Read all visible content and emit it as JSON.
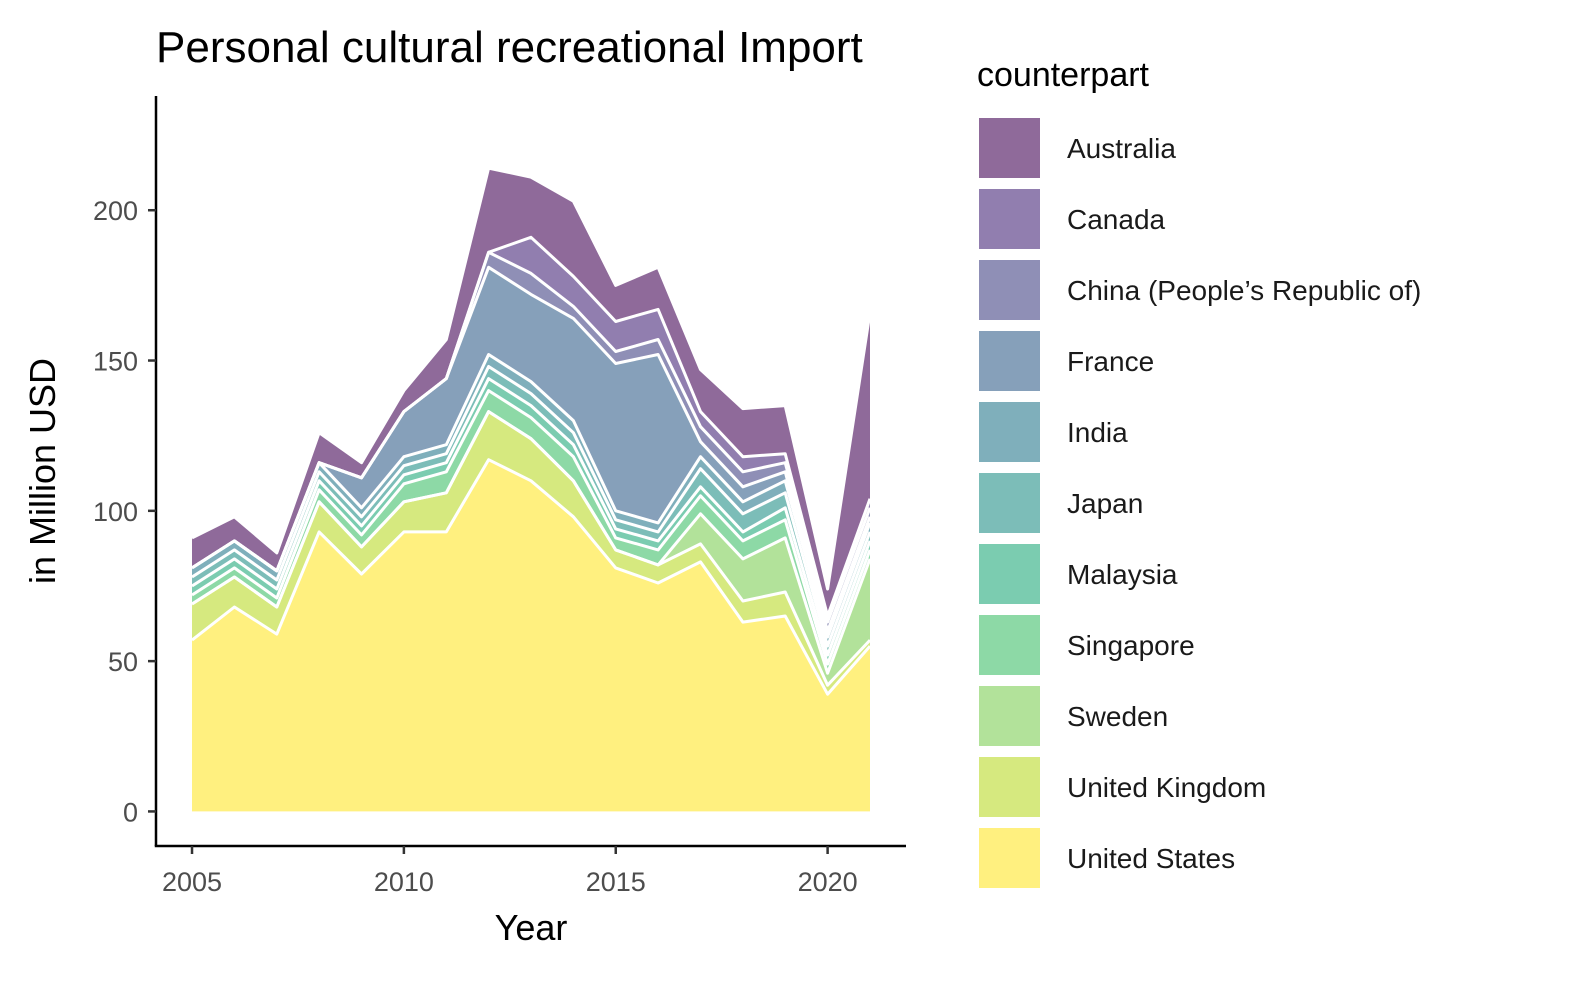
{
  "chart_data": {
    "type": "area",
    "title": "Personal cultural recreational Import",
    "xlabel": "Year",
    "ylabel": "in Million USD",
    "xlim": [
      2004.15,
      2021.85
    ],
    "ylim": [
      -11.5,
      238
    ],
    "x_ticks": [
      2005,
      2010,
      2015,
      2020
    ],
    "y_ticks": [
      0,
      50,
      100,
      150,
      200
    ],
    "legend_title": "counterpart",
    "legend_position": "right",
    "grid": false,
    "years": [
      2005,
      2006,
      2007,
      2008,
      2009,
      2010,
      2011,
      2012,
      2013,
      2014,
      2015,
      2016,
      2017,
      2018,
      2019,
      2020,
      2021
    ],
    "series": [
      {
        "name": "Australia",
        "color": "#8F6A9A",
        "values": [
          10,
          8,
          6,
          10,
          5,
          7,
          13,
          28,
          20,
          25,
          12,
          14,
          14,
          16,
          16,
          9,
          62
        ]
      },
      {
        "name": "Canada",
        "color": "#917EAF",
        "values": [
          0,
          0,
          0,
          0,
          0,
          0,
          0,
          0,
          12,
          10,
          10,
          10,
          5,
          5,
          3,
          2,
          3
        ]
      },
      {
        "name": "China (People’s Republic of)",
        "color": "#8F8FB6",
        "values": [
          0,
          0,
          0,
          0,
          0,
          0,
          0,
          5,
          7,
          4,
          4,
          5,
          5,
          5,
          3,
          3,
          3
        ]
      },
      {
        "name": "France",
        "color": "#86A0BA",
        "values": [
          0,
          0,
          0,
          0,
          10,
          15,
          22,
          29,
          29,
          34,
          49,
          56,
          5,
          5,
          3,
          2,
          2
        ]
      },
      {
        "name": "India",
        "color": "#7FAFBB",
        "values": [
          3,
          3,
          3,
          3,
          3,
          3,
          3,
          4,
          4,
          4,
          3,
          3,
          4,
          4,
          4,
          3,
          3
        ]
      },
      {
        "name": "Japan",
        "color": "#7CBDB8",
        "values": [
          3,
          3,
          3,
          3,
          3,
          3,
          3,
          4,
          4,
          4,
          3,
          3,
          6,
          6,
          5,
          3,
          3
        ]
      },
      {
        "name": "Malaysia",
        "color": "#7BCCB0",
        "values": [
          3,
          3,
          3,
          3,
          3,
          3,
          3,
          4,
          4,
          4,
          3,
          3,
          3,
          3,
          4,
          3,
          3
        ]
      },
      {
        "name": "Singapore",
        "color": "#8DD9A6",
        "values": [
          3,
          3,
          3,
          4,
          4,
          6,
          7,
          7,
          7,
          8,
          4,
          5,
          6,
          6,
          6,
          3,
          3
        ]
      },
      {
        "name": "Sweden",
        "color": "#B2E29A",
        "values": [
          0,
          0,
          0,
          0,
          0,
          0,
          0,
          0,
          0,
          0,
          0,
          0,
          10,
          14,
          18,
          4,
          27
        ]
      },
      {
        "name": "United Kingdom",
        "color": "#D6E97F",
        "values": [
          12,
          10,
          9,
          10,
          9,
          10,
          13,
          16,
          14,
          12,
          6,
          6,
          6,
          7,
          8,
          3,
          2
        ]
      },
      {
        "name": "United States",
        "color": "#FFF07F",
        "values": [
          57,
          68,
          59,
          93,
          79,
          93,
          93,
          117,
          110,
          98,
          81,
          76,
          83,
          63,
          65,
          39,
          55
        ]
      }
    ]
  }
}
